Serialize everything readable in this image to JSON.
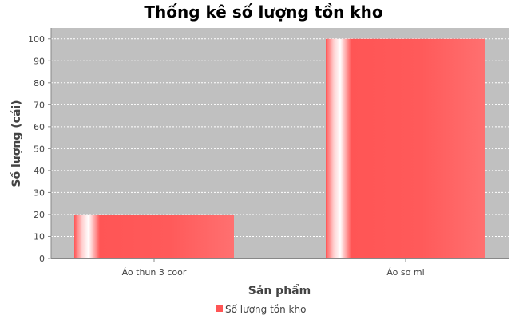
{
  "chart_data": {
    "type": "bar",
    "title": "Thống kê số lượng tồn kho",
    "xlabel": "Sản phẩm",
    "ylabel": "Số lượng (cái)",
    "categories": [
      "Áo thun 3 coor",
      "Áo sơ mi"
    ],
    "series": [
      {
        "name": "Số lượng tồn kho",
        "values": [
          20,
          100
        ]
      }
    ],
    "ylim": [
      0,
      105
    ],
    "yticks": [
      "0",
      "10",
      "20",
      "30",
      "40",
      "50",
      "60",
      "70",
      "80",
      "90",
      "100"
    ],
    "grid": true,
    "legend_position": "bottom",
    "colors": {
      "bar": "#ff5555",
      "plot_background": "#c0c0c0",
      "grid": "#ffffff"
    }
  }
}
